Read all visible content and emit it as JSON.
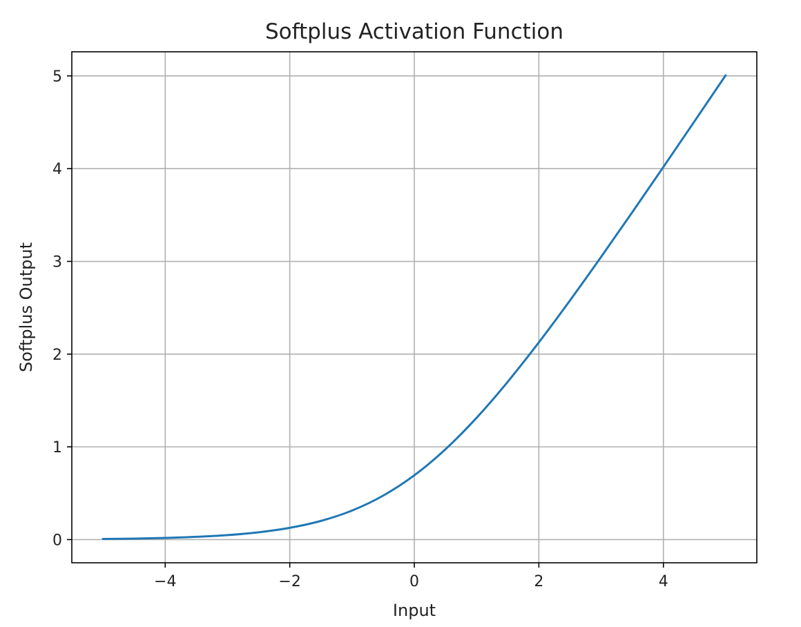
{
  "chart_data": {
    "type": "line",
    "title": "Softplus Activation Function",
    "xlabel": "Input",
    "ylabel": "Softplus Output",
    "xlim": [
      -5.5,
      5.5
    ],
    "ylim": [
      -0.25,
      5.26
    ],
    "x_ticks": [
      -4,
      -2,
      0,
      2,
      4
    ],
    "x_tick_labels": [
      "−4",
      "−2",
      "0",
      "2",
      "4"
    ],
    "y_ticks": [
      0,
      1,
      2,
      3,
      4,
      5
    ],
    "y_tick_labels": [
      "0",
      "1",
      "2",
      "3",
      "4",
      "5"
    ],
    "grid": true,
    "legend": "none",
    "series": [
      {
        "color": "#1f77b4",
        "x": [
          -5,
          -4.5,
          -4,
          -3.5,
          -3,
          -2.5,
          -2,
          -1.5,
          -1,
          -0.5,
          0,
          0.5,
          1,
          1.5,
          2,
          2.5,
          3,
          3.5,
          4,
          4.5,
          5
        ],
        "y": [
          0.0067,
          0.011,
          0.0181,
          0.0298,
          0.0486,
          0.0789,
          0.1269,
          0.2014,
          0.3133,
          0.4741,
          0.6931,
          0.9741,
          1.3133,
          1.7014,
          2.1269,
          2.5789,
          3.0486,
          3.5298,
          4.0181,
          4.511,
          5.0067
        ]
      }
    ]
  }
}
